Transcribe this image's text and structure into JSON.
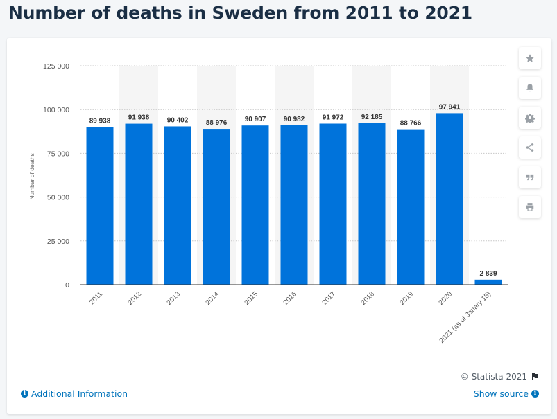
{
  "page": {
    "title": "Number of deaths in Sweden from 2011 to 2021"
  },
  "footer": {
    "copyright": "© Statista 2021",
    "additional_info": "Additional Information",
    "show_source": "Show source"
  },
  "toolbar": {
    "icons": [
      "star-icon",
      "bell-icon",
      "gear-icon",
      "share-icon",
      "quote-icon",
      "print-icon"
    ]
  },
  "colors": {
    "bar": "#0073db",
    "band": "#f5f5f5",
    "link": "#0073bb",
    "title": "#1a2e44"
  },
  "chart_data": {
    "type": "bar",
    "categories": [
      "2011",
      "2012",
      "2013",
      "2014",
      "2015",
      "2016",
      "2017",
      "2018",
      "2019",
      "2020",
      "2021 (as of Janary 15)"
    ],
    "values": [
      89938,
      91938,
      90402,
      88976,
      90907,
      90982,
      91972,
      92185,
      88766,
      97941,
      2839
    ],
    "value_labels": [
      "89 938",
      "91 938",
      "90 402",
      "88 976",
      "90 907",
      "90 982",
      "91 972",
      "92 185",
      "88 766",
      "97 941",
      "2 839"
    ],
    "ylabel": "Number of deaths",
    "xlabel": "",
    "ylim": [
      0,
      125000
    ],
    "yticks": [
      0,
      25000,
      50000,
      75000,
      100000,
      125000
    ],
    "ytick_labels": [
      "0",
      "25 000",
      "50 000",
      "75 000",
      "100 000",
      "125 000"
    ],
    "grid": true,
    "legend": "none"
  }
}
